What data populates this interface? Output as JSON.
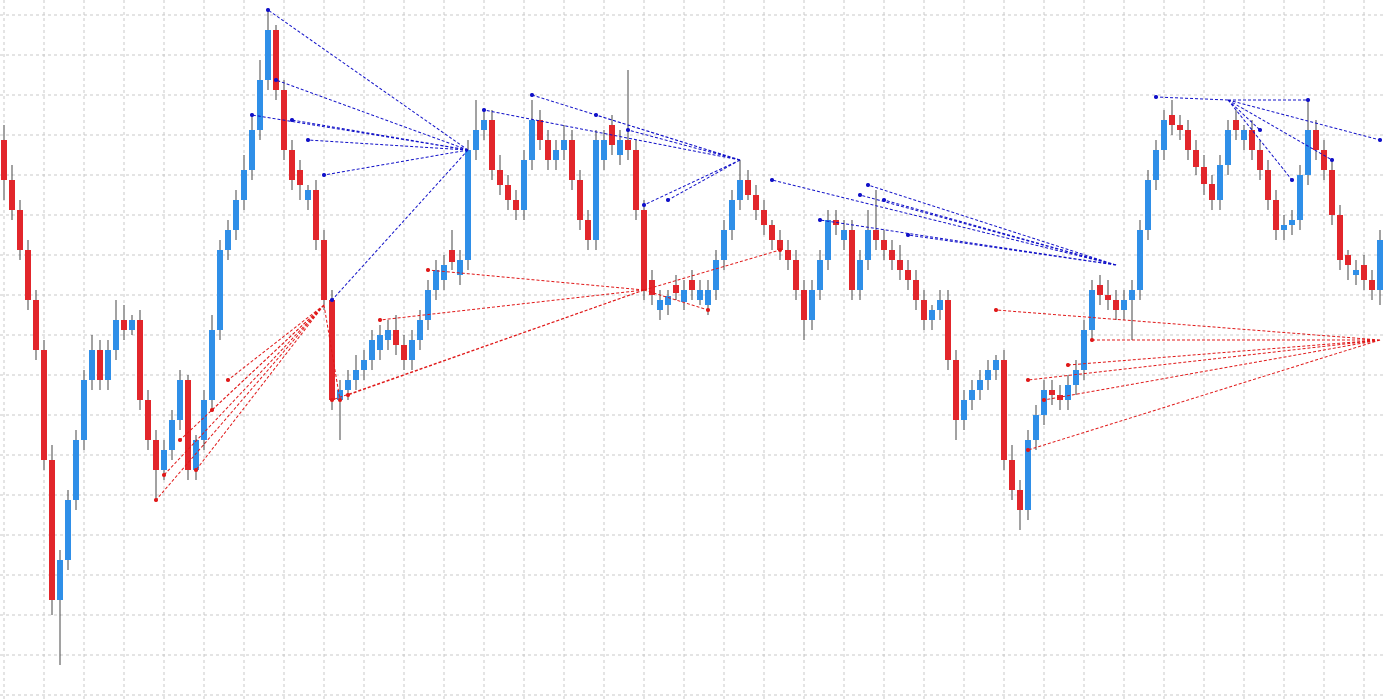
{
  "chart_data": {
    "type": "candlestick",
    "up_color": "#2f8fe8",
    "down_color": "#e2262b",
    "wick_color": "#444444",
    "xlim": [
      -0.5,
      172.75
    ],
    "ylim": [
      0,
      700
    ],
    "xticks": [
      0,
      5,
      10,
      15,
      20,
      25,
      30,
      35,
      40,
      45,
      50,
      55,
      60,
      65,
      70,
      75,
      80,
      85,
      90,
      95,
      100,
      105,
      110,
      115,
      120,
      125,
      130,
      135,
      140,
      145,
      150,
      155,
      160,
      165,
      170
    ],
    "yticks": [
      5,
      45,
      85,
      125,
      165,
      205,
      245,
      285,
      325,
      365,
      405,
      445,
      485,
      525,
      565,
      605,
      645,
      685
    ],
    "grid": true,
    "grid_color": "#c8c8c8",
    "open": [
      560,
      520,
      490,
      450,
      400,
      350,
      240,
      100,
      140,
      200,
      260,
      320,
      350,
      320,
      350,
      380,
      370,
      380,
      300,
      260,
      230,
      250,
      280,
      320,
      230,
      260,
      300,
      370,
      450,
      470,
      500,
      530,
      570,
      620,
      670,
      610,
      550,
      530,
      500,
      510,
      460,
      400,
      300,
      310,
      320,
      330,
      340,
      350,
      360,
      370,
      355,
      340,
      360,
      380,
      410,
      420,
      450,
      425,
      440,
      550,
      570,
      580,
      530,
      515,
      500,
      490,
      540,
      580,
      560,
      540,
      550,
      560,
      520,
      480,
      460,
      540,
      575,
      545,
      560,
      550,
      490,
      420,
      390,
      395,
      415,
      398,
      420,
      400,
      395,
      410,
      440,
      470,
      500,
      520,
      505,
      490,
      475,
      460,
      450,
      440,
      410,
      380,
      410,
      440,
      480,
      460,
      470,
      410,
      440,
      470,
      460,
      450,
      440,
      430,
      420,
      400,
      380,
      390,
      400,
      340,
      280,
      300,
      310,
      320,
      330,
      340,
      240,
      210,
      190,
      260,
      285,
      310,
      305,
      300,
      315,
      330,
      370,
      415,
      405,
      400,
      390,
      400,
      410,
      470,
      520,
      550,
      585,
      575,
      570,
      550,
      533,
      516,
      500,
      535,
      580,
      560,
      570,
      550,
      530,
      500,
      470,
      475,
      480,
      525,
      570,
      550,
      530,
      485,
      445,
      425,
      435,
      420,
      410
    ],
    "high": [
      575,
      535,
      500,
      460,
      410,
      360,
      255,
      150,
      210,
      270,
      330,
      365,
      360,
      360,
      400,
      395,
      385,
      390,
      310,
      270,
      260,
      290,
      330,
      325,
      265,
      310,
      385,
      460,
      480,
      510,
      545,
      585,
      640,
      690,
      675,
      620,
      560,
      540,
      515,
      520,
      470,
      410,
      320,
      330,
      345,
      350,
      370,
      375,
      380,
      385,
      365,
      370,
      390,
      420,
      440,
      445,
      470,
      450,
      560,
      600,
      590,
      590,
      545,
      525,
      510,
      550,
      600,
      590,
      570,
      560,
      575,
      570,
      530,
      490,
      570,
      570,
      585,
      570,
      630,
      560,
      500,
      430,
      410,
      410,
      425,
      420,
      430,
      420,
      420,
      450,
      480,
      510,
      540,
      530,
      515,
      500,
      480,
      470,
      460,
      450,
      420,
      420,
      450,
      490,
      490,
      480,
      480,
      450,
      490,
      510,
      470,
      460,
      455,
      440,
      430,
      410,
      395,
      410,
      410,
      350,
      310,
      320,
      330,
      340,
      345,
      350,
      255,
      220,
      270,
      295,
      320,
      320,
      315,
      325,
      340,
      380,
      420,
      425,
      420,
      410,
      410,
      420,
      480,
      530,
      560,
      590,
      600,
      585,
      580,
      560,
      545,
      525,
      545,
      580,
      590,
      575,
      580,
      560,
      540,
      510,
      485,
      490,
      535,
      600,
      580,
      560,
      540,
      495,
      450,
      440,
      445,
      430,
      470
    ],
    "low": [
      500,
      480,
      440,
      390,
      340,
      230,
      85,
      35,
      130,
      190,
      250,
      310,
      310,
      310,
      340,
      360,
      365,
      290,
      250,
      200,
      220,
      240,
      270,
      220,
      220,
      250,
      290,
      360,
      440,
      460,
      490,
      520,
      560,
      610,
      600,
      540,
      510,
      500,
      490,
      450,
      390,
      290,
      260,
      300,
      310,
      320,
      330,
      340,
      350,
      345,
      330,
      330,
      350,
      370,
      400,
      410,
      430,
      415,
      430,
      540,
      560,
      520,
      505,
      490,
      480,
      480,
      530,
      550,
      530,
      530,
      540,
      510,
      470,
      450,
      450,
      530,
      545,
      535,
      540,
      480,
      400,
      395,
      380,
      385,
      400,
      390,
      400,
      395,
      385,
      400,
      430,
      460,
      490,
      500,
      480,
      465,
      450,
      440,
      430,
      400,
      360,
      370,
      400,
      430,
      465,
      450,
      400,
      400,
      430,
      450,
      440,
      430,
      420,
      410,
      390,
      370,
      370,
      380,
      330,
      260,
      270,
      290,
      300,
      310,
      320,
      230,
      200,
      170,
      180,
      250,
      275,
      295,
      290,
      290,
      305,
      320,
      360,
      395,
      390,
      380,
      380,
      360,
      400,
      460,
      510,
      540,
      565,
      560,
      540,
      525,
      505,
      490,
      490,
      525,
      560,
      550,
      540,
      520,
      490,
      460,
      460,
      465,
      470,
      515,
      540,
      520,
      475,
      430,
      420,
      415,
      410,
      400,
      395
    ],
    "close": [
      520,
      490,
      450,
      400,
      350,
      240,
      100,
      140,
      200,
      260,
      320,
      350,
      320,
      350,
      380,
      370,
      380,
      300,
      260,
      230,
      250,
      280,
      320,
      230,
      260,
      300,
      370,
      450,
      470,
      500,
      530,
      570,
      620,
      670,
      610,
      550,
      520,
      515,
      510,
      460,
      400,
      300,
      310,
      320,
      330,
      340,
      360,
      365,
      370,
      355,
      340,
      360,
      380,
      410,
      430,
      435,
      438,
      440,
      550,
      570,
      580,
      530,
      515,
      500,
      490,
      540,
      580,
      560,
      540,
      550,
      560,
      520,
      480,
      460,
      560,
      560,
      555,
      560,
      550,
      490,
      410,
      405,
      400,
      404,
      407,
      410,
      410,
      410,
      410,
      440,
      470,
      500,
      520,
      505,
      490,
      475,
      460,
      450,
      440,
      410,
      380,
      410,
      440,
      480,
      475,
      470,
      410,
      440,
      470,
      460,
      450,
      440,
      430,
      420,
      400,
      380,
      390,
      400,
      340,
      280,
      300,
      310,
      320,
      330,
      340,
      240,
      210,
      190,
      260,
      285,
      310,
      305,
      300,
      315,
      330,
      370,
      410,
      405,
      400,
      390,
      400,
      410,
      470,
      520,
      550,
      580,
      575,
      570,
      550,
      533,
      516,
      500,
      535,
      570,
      570,
      570,
      550,
      530,
      500,
      470,
      475,
      480,
      525,
      570,
      550,
      530,
      485,
      440,
      435,
      430,
      420,
      410,
      460
    ],
    "fans": [
      {
        "color": "#1010c8",
        "from": [
          58,
          550
        ],
        "to": [
          [
            31,
            585
          ],
          [
            33,
            690
          ],
          [
            34,
            620
          ],
          [
            36,
            580
          ],
          [
            38,
            560
          ],
          [
            40,
            525
          ],
          [
            41,
            400
          ]
        ]
      },
      {
        "color": "#e01818",
        "from": [
          40,
          395
        ],
        "to": [
          [
            19,
            200
          ],
          [
            20,
            225
          ],
          [
            22,
            260
          ],
          [
            24,
            230
          ],
          [
            26,
            290
          ],
          [
            28,
            320
          ],
          [
            42,
            300
          ]
        ]
      },
      {
        "color": "#1010c8",
        "from": [
          92,
          540
        ],
        "to": [
          [
            66,
            605
          ],
          [
            74,
            585
          ],
          [
            60,
            590
          ],
          [
            78,
            570
          ],
          [
            80,
            495
          ],
          [
            83,
            500
          ]
        ]
      },
      {
        "color": "#e01818",
        "from": [
          80,
          410
        ],
        "to": [
          [
            53,
            430
          ],
          [
            47,
            380
          ],
          [
            41,
            300
          ],
          [
            43,
            305
          ],
          [
            97,
            450
          ],
          [
            88,
            390
          ]
        ]
      },
      {
        "color": "#1010c8",
        "from": [
          139,
          435
        ],
        "to": [
          [
            107,
            505
          ],
          [
            108,
            515
          ],
          [
            110,
            500
          ],
          [
            113,
            465
          ],
          [
            96,
            520
          ],
          [
            102,
            480
          ]
        ]
      },
      {
        "color": "#e01818",
        "from": [
          172,
          360
        ],
        "to": [
          [
            124,
            390
          ],
          [
            128,
            320
          ],
          [
            130,
            300
          ],
          [
            133,
            335
          ],
          [
            136,
            360
          ],
          [
            128,
            250
          ]
        ]
      },
      {
        "color": "#1010c8",
        "from": [
          153,
          600
        ],
        "to": [
          [
            144,
            603
          ],
          [
            157,
            570
          ],
          [
            161,
            520
          ],
          [
            163,
            600
          ],
          [
            166,
            540
          ],
          [
            172,
            560
          ]
        ]
      }
    ]
  }
}
